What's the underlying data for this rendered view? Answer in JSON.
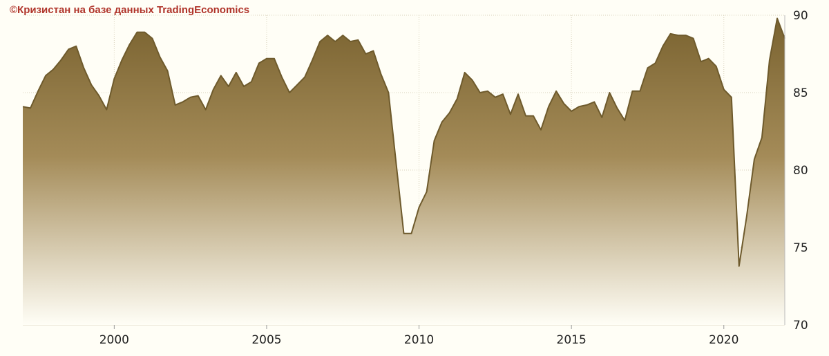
{
  "watermark": "©Кризистан на базе данных TradingEconomics",
  "colors": {
    "background": "#fffef6",
    "area_top": "#7a6330",
    "area_mid": "#a48b58",
    "area_bottom": "#fffef6",
    "line": "#6e5a2c",
    "grid": "#d8d2bc"
  },
  "chart_data": {
    "type": "area",
    "title": "",
    "xlabel": "",
    "ylabel": "",
    "ylim": [
      70,
      90
    ],
    "xlim": [
      1997.0,
      2022.0
    ],
    "y_axis_side": "right",
    "grid": true,
    "x_ticks": [
      {
        "value": 2000,
        "label": "2000"
      },
      {
        "value": 2005,
        "label": "2005"
      },
      {
        "value": 2010,
        "label": "2010"
      },
      {
        "value": 2015,
        "label": "2015"
      },
      {
        "value": 2020,
        "label": "2020"
      }
    ],
    "y_ticks": [
      {
        "value": 70,
        "label": "70"
      },
      {
        "value": 75,
        "label": "75"
      },
      {
        "value": 80,
        "label": "80"
      },
      {
        "value": 85,
        "label": "85"
      },
      {
        "value": 90,
        "label": "90"
      }
    ],
    "x": [
      1997.0,
      1997.25,
      1997.5,
      1997.75,
      1998.0,
      1998.25,
      1998.5,
      1998.75,
      1999.0,
      1999.25,
      1999.5,
      1999.75,
      2000.0,
      2000.25,
      2000.5,
      2000.75,
      2001.0,
      2001.25,
      2001.5,
      2001.75,
      2002.0,
      2002.25,
      2002.5,
      2002.75,
      2003.0,
      2003.25,
      2003.5,
      2003.75,
      2004.0,
      2004.25,
      2004.5,
      2004.75,
      2005.0,
      2005.25,
      2005.5,
      2005.75,
      2006.0,
      2006.25,
      2006.5,
      2006.75,
      2007.0,
      2007.25,
      2007.5,
      2007.75,
      2008.0,
      2008.25,
      2008.5,
      2008.75,
      2009.0,
      2009.25,
      2009.5,
      2009.75,
      2010.0,
      2010.25,
      2010.5,
      2010.75,
      2011.0,
      2011.25,
      2011.5,
      2011.75,
      2012.0,
      2012.25,
      2012.5,
      2012.75,
      2013.0,
      2013.25,
      2013.5,
      2013.75,
      2014.0,
      2014.25,
      2014.5,
      2014.75,
      2015.0,
      2015.25,
      2015.5,
      2015.75,
      2016.0,
      2016.25,
      2016.5,
      2016.75,
      2017.0,
      2017.25,
      2017.5,
      2017.75,
      2018.0,
      2018.25,
      2018.5,
      2018.75,
      2019.0,
      2019.25,
      2019.5,
      2019.75,
      2020.0,
      2020.25,
      2020.5,
      2020.75,
      2021.0,
      2021.25,
      2021.5,
      2021.75,
      2022.0
    ],
    "series": [
      {
        "values": [
          84.1,
          84.0,
          85.1,
          86.1,
          86.5,
          87.1,
          87.8,
          88.0,
          86.6,
          85.5,
          84.8,
          83.9,
          85.9,
          87.1,
          88.1,
          88.9,
          88.9,
          88.5,
          87.3,
          86.4,
          84.2,
          84.4,
          84.7,
          84.8,
          83.9,
          85.2,
          86.1,
          85.4,
          86.3,
          85.4,
          85.7,
          86.9,
          87.2,
          87.2,
          86.0,
          85.0,
          85.5,
          86.0,
          87.1,
          88.3,
          88.7,
          88.3,
          88.7,
          88.3,
          88.4,
          87.5,
          87.7,
          86.2,
          85.0,
          80.4,
          75.9,
          75.9,
          77.6,
          78.6,
          81.9,
          83.1,
          83.7,
          84.6,
          86.3,
          85.8,
          85.0,
          85.1,
          84.7,
          84.9,
          83.6,
          84.9,
          83.5,
          83.5,
          82.6,
          84.1,
          85.1,
          84.3,
          83.8,
          84.1,
          84.2,
          84.4,
          83.4,
          85.0,
          84.0,
          83.2,
          85.1,
          85.1,
          86.6,
          86.9,
          88.0,
          88.8,
          88.7,
          88.7,
          88.5,
          87.0,
          87.2,
          86.7,
          85.2,
          84.7,
          73.8,
          77.0,
          80.7,
          82.1,
          87.1,
          89.8,
          88.5
        ]
      }
    ]
  }
}
